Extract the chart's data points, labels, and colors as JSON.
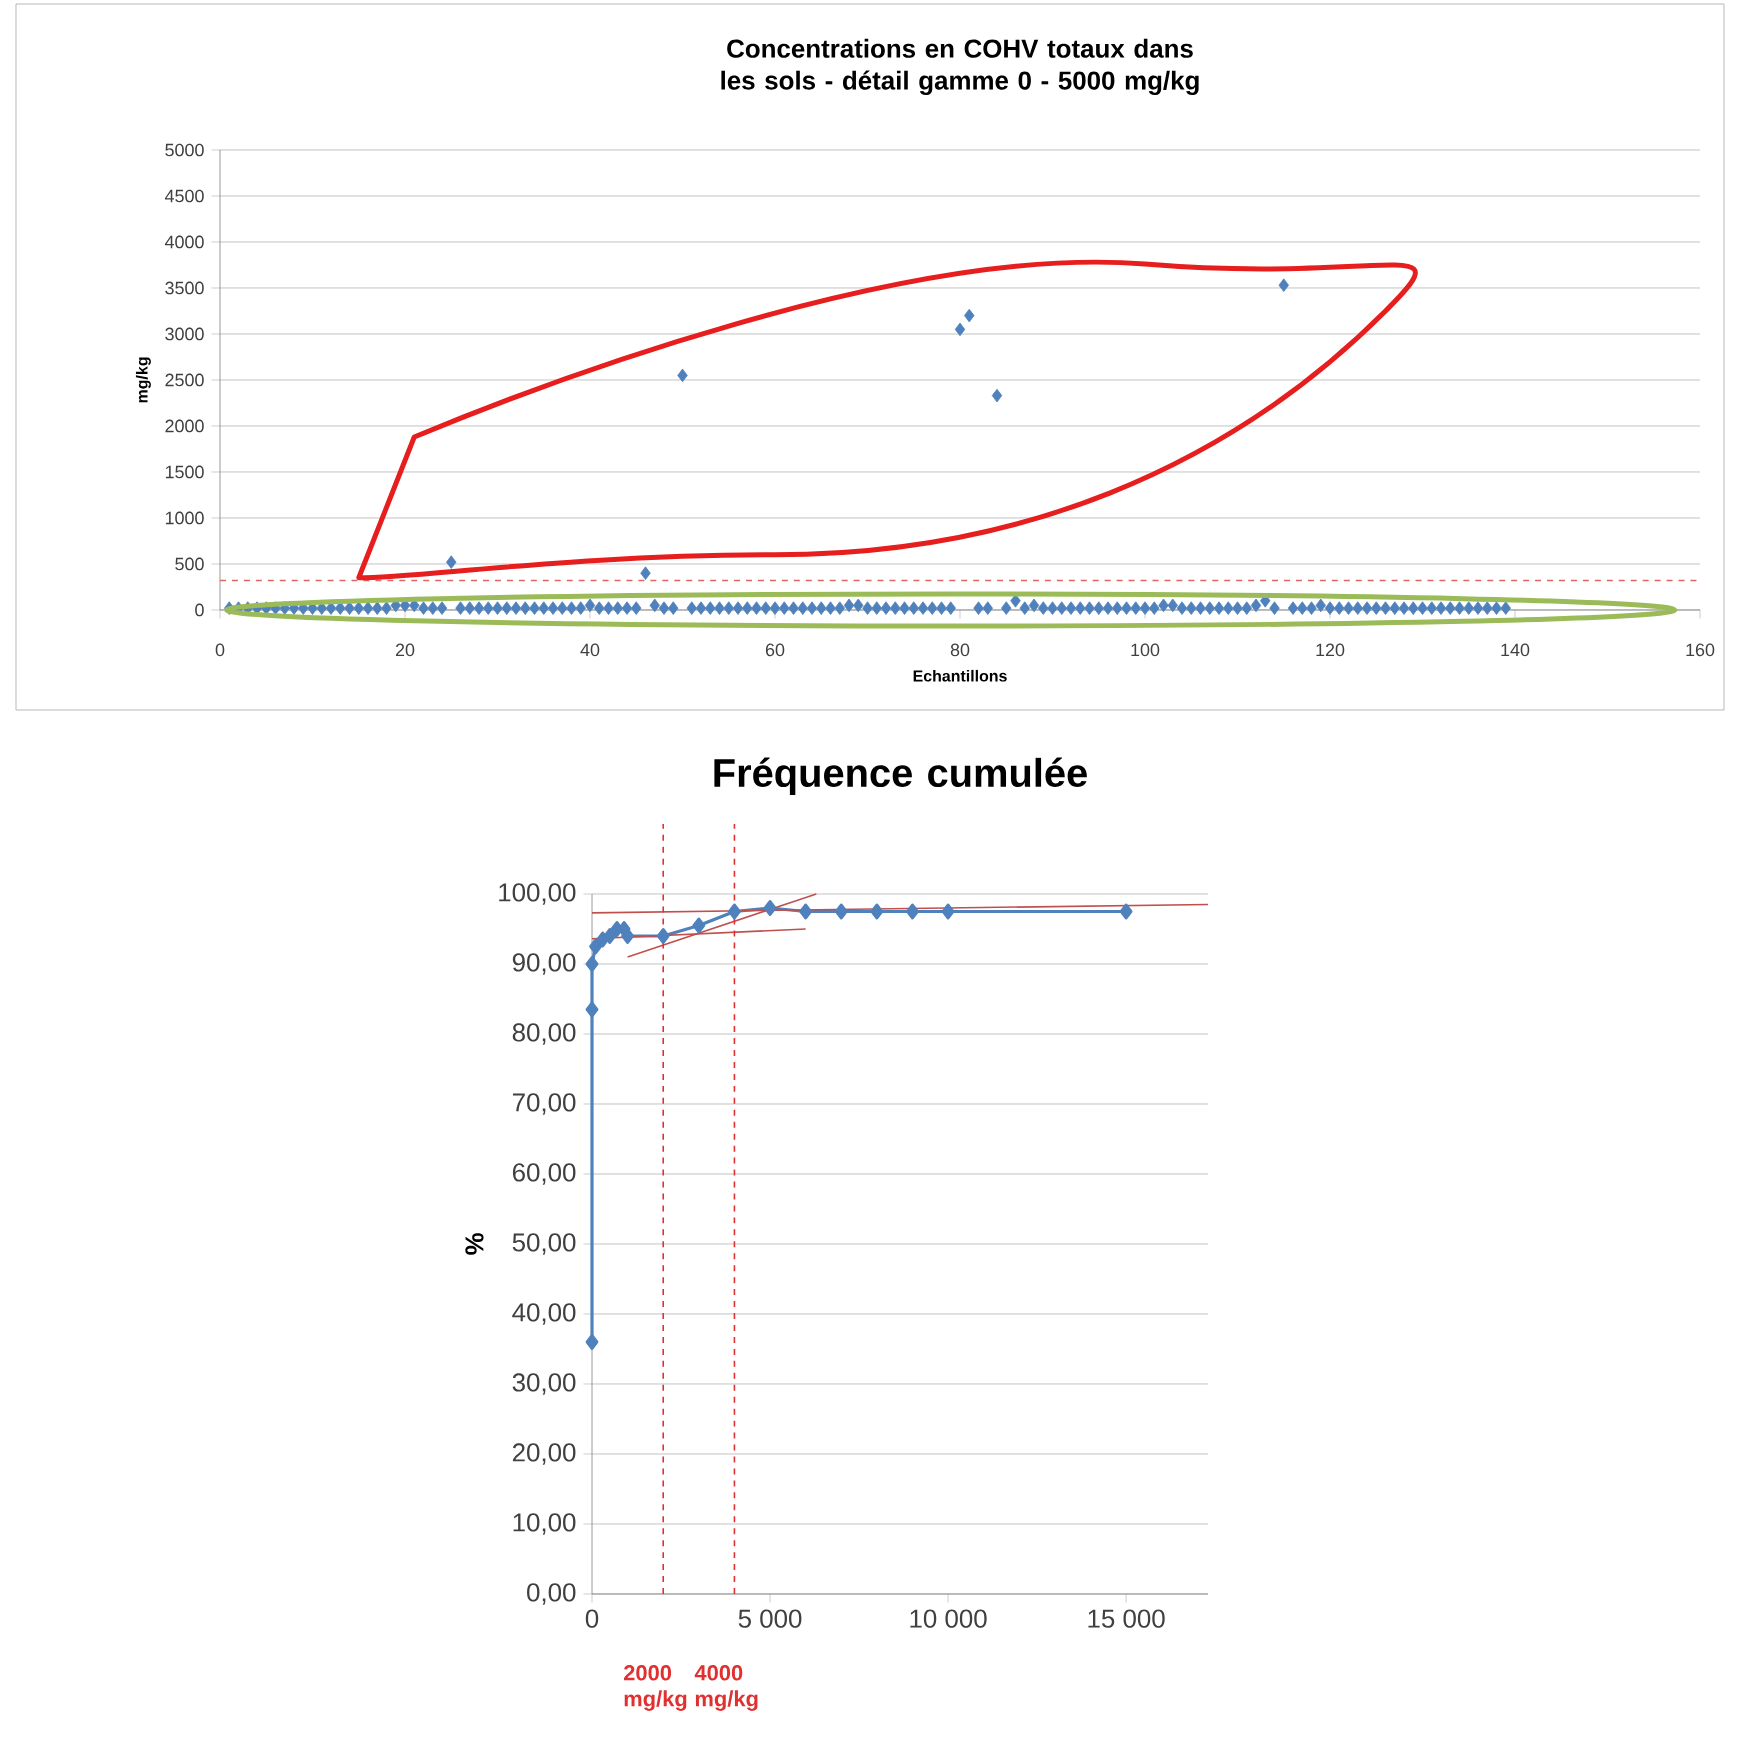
{
  "chart_data": [
    {
      "type": "scatter",
      "title": "Concentrations en COHV totaux dans les sols - détail gamme 0 - 5000 mg/kg",
      "xlabel": "Echantillons",
      "ylabel": "mg/kg",
      "xlim": [
        0,
        160
      ],
      "xticks": [
        0,
        20,
        40,
        60,
        80,
        100,
        120,
        140,
        160
      ],
      "ylim": [
        0,
        5000
      ],
      "yticks": [
        0,
        500,
        1000,
        1500,
        2000,
        2500,
        3000,
        3500,
        4000,
        4500,
        5000
      ],
      "grid": "y",
      "marker": "diamond",
      "ref_lines": [
        {
          "axis": "y",
          "value": 320,
          "color": "#e06666",
          "line_style": "dashed"
        }
      ],
      "series": [
        {
          "color": "#4f81bd",
          "x": [
            1,
            2,
            3,
            4,
            5,
            6,
            7,
            8,
            9,
            10,
            11,
            12,
            13,
            14,
            15,
            16,
            17,
            18,
            19,
            20,
            21,
            22,
            23,
            24,
            25,
            26,
            27,
            28,
            29,
            30,
            31,
            32,
            33,
            34,
            35,
            36,
            37,
            38,
            39,
            40,
            41,
            42,
            43,
            44,
            45,
            46,
            47,
            48,
            49,
            50,
            51,
            52,
            53,
            54,
            55,
            56,
            57,
            58,
            59,
            60,
            61,
            62,
            63,
            64,
            65,
            66,
            67,
            68,
            69,
            70,
            71,
            72,
            73,
            74,
            75,
            76,
            77,
            78,
            79,
            80,
            81,
            82,
            83,
            84,
            85,
            86,
            87,
            88,
            89,
            90,
            91,
            92,
            93,
            94,
            95,
            96,
            97,
            98,
            99,
            100,
            101,
            102,
            103,
            104,
            105,
            106,
            107,
            108,
            109,
            110,
            111,
            112,
            113,
            114,
            115,
            116,
            117,
            118,
            119,
            120,
            121,
            122,
            123,
            124,
            125,
            126,
            127,
            128,
            129,
            130,
            131,
            132,
            133,
            134,
            135,
            136,
            137,
            138,
            139
          ],
          "values": [
            20,
            20,
            20,
            20,
            20,
            20,
            20,
            20,
            20,
            20,
            20,
            20,
            20,
            20,
            20,
            20,
            20,
            20,
            50,
            50,
            50,
            20,
            20,
            20,
            520,
            20,
            20,
            20,
            20,
            20,
            20,
            20,
            20,
            20,
            20,
            20,
            20,
            20,
            20,
            50,
            20,
            20,
            20,
            20,
            20,
            400,
            50,
            20,
            20,
            2550,
            20,
            20,
            20,
            20,
            20,
            20,
            20,
            20,
            20,
            20,
            20,
            20,
            20,
            20,
            20,
            20,
            20,
            50,
            50,
            20,
            20,
            20,
            20,
            20,
            20,
            20,
            20,
            20,
            20,
            3050,
            3200,
            20,
            20,
            2330,
            20,
            100,
            20,
            50,
            20,
            20,
            20,
            20,
            20,
            20,
            20,
            20,
            20,
            20,
            20,
            20,
            20,
            50,
            50,
            20,
            20,
            20,
            20,
            20,
            20,
            20,
            20,
            50,
            100,
            20,
            3530,
            20,
            20,
            20,
            50,
            20,
            20,
            20,
            20,
            20,
            20,
            20,
            20,
            20,
            20,
            20,
            20,
            20,
            20,
            20,
            20,
            20,
            20,
            20,
            20
          ]
        }
      ]
    },
    {
      "type": "line",
      "title": "Fréquence cumulée",
      "ylabel": "%",
      "xlim": [
        0,
        17300
      ],
      "xticks": [
        0,
        {
          "value": 5000,
          "label": "5 000"
        },
        {
          "value": 10000,
          "label": "10 000"
        },
        {
          "value": 15000,
          "label": "15 000"
        }
      ],
      "ylim": [
        0,
        100
      ],
      "yticks": [
        {
          "value": 0,
          "label": "0,00"
        },
        {
          "value": 10,
          "label": "10,00"
        },
        {
          "value": 20,
          "label": "20,00"
        },
        {
          "value": 30,
          "label": "30,00"
        },
        {
          "value": 40,
          "label": "40,00"
        },
        {
          "value": 50,
          "label": "50,00"
        },
        {
          "value": 60,
          "label": "60,00"
        },
        {
          "value": 70,
          "label": "70,00"
        },
        {
          "value": 80,
          "label": "80,00"
        },
        {
          "value": 90,
          "label": "90,00"
        },
        {
          "value": 100,
          "label": "100,00"
        }
      ],
      "grid": "y",
      "marker": "diamond",
      "ref_lines": [
        {
          "axis": "x",
          "value": 2000,
          "label": "2000 mg/kg",
          "color": "#e03030",
          "line_style": "dashed"
        },
        {
          "axis": "x",
          "value": 4000,
          "label": "4000 mg/kg",
          "color": "#e03030",
          "line_style": "dashed"
        }
      ],
      "series": [
        {
          "color": "#4f81bd",
          "x": [
            0,
            0,
            0,
            100,
            200,
            300,
            500,
            700,
            900,
            1000,
            2000,
            3000,
            4000,
            5000,
            6000,
            7000,
            8000,
            9000,
            10000,
            15000
          ],
          "values": [
            36,
            83.5,
            90,
            92.5,
            null,
            93.5,
            94,
            95,
            95,
            94,
            94,
            95.5,
            97.5,
            98,
            97.5,
            97.5,
            97.5,
            97.5,
            97.5,
            97.5
          ]
        },
        {
          "type": "line",
          "marker": "none",
          "color": "#c0504d",
          "x": [
            0,
            17300
          ],
          "values": [
            97.3,
            98.5
          ]
        },
        {
          "type": "line",
          "marker": "none",
          "color": "#c0504d",
          "x": [
            0,
            6000
          ],
          "values": [
            93.6,
            95
          ]
        },
        {
          "type": "line",
          "marker": "none",
          "color": "#c0504d",
          "x": [
            1000,
            6300
          ],
          "values": [
            91,
            100
          ]
        }
      ]
    }
  ]
}
